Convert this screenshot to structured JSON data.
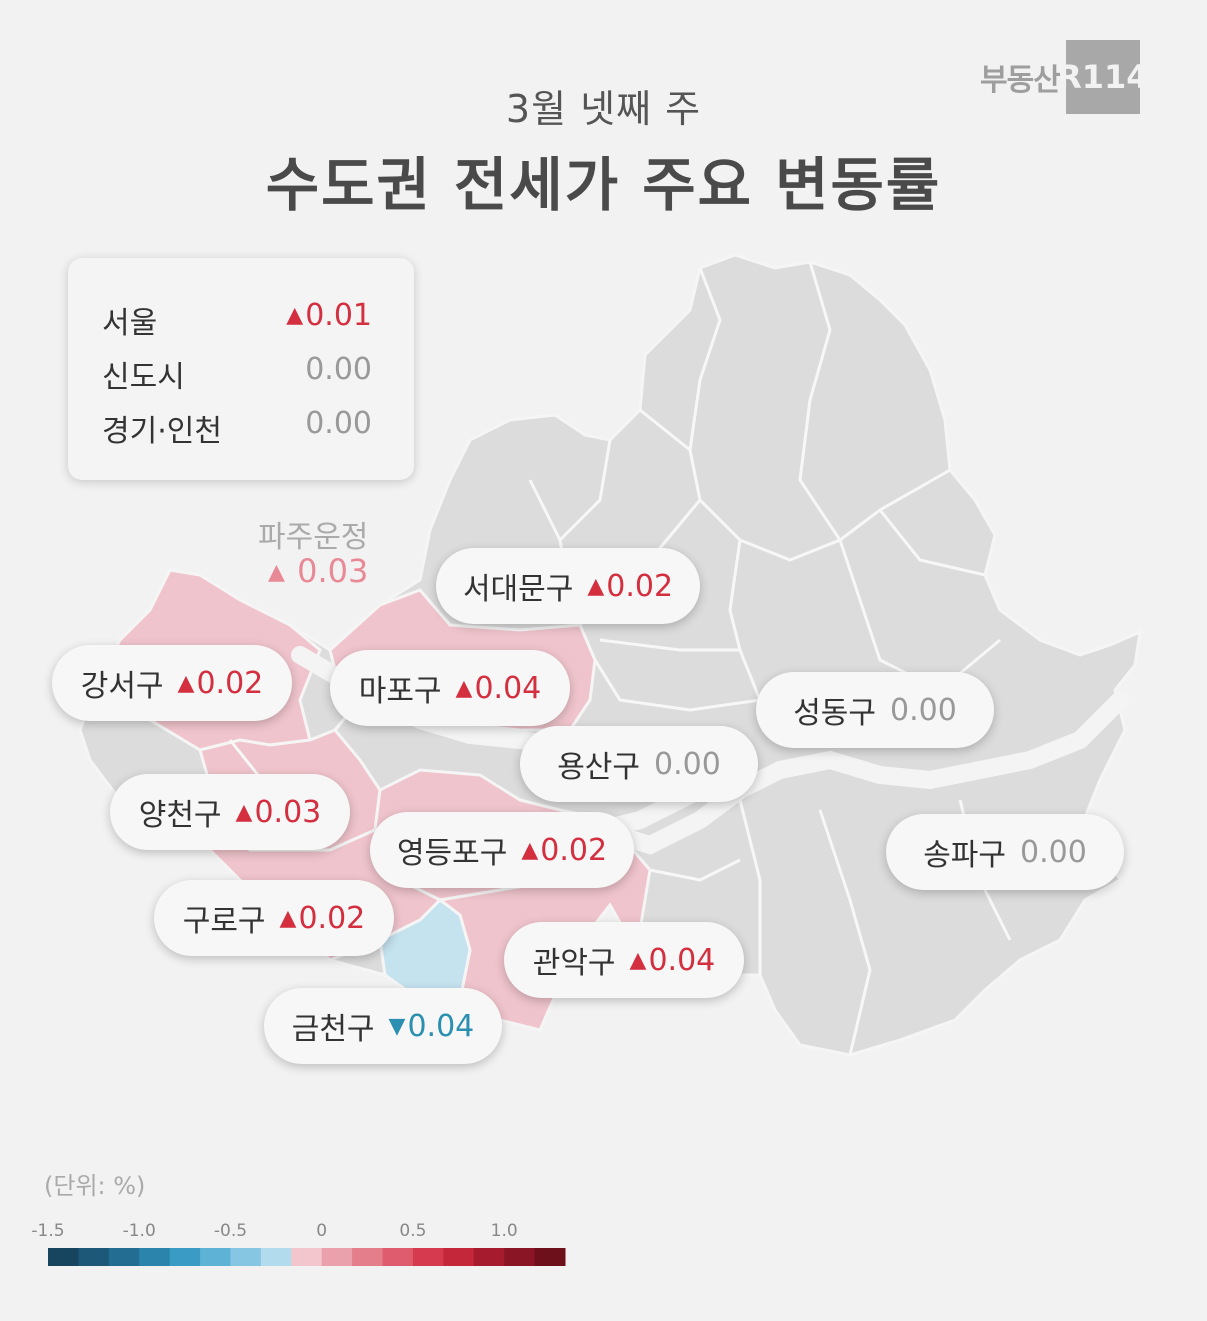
{
  "header": {
    "subtitle": "3월 넷째 주",
    "title": "수도권 전세가 주요 변동률"
  },
  "logo": {
    "text": "부동산",
    "box": "R114"
  },
  "summary": [
    {
      "label": "서울",
      "value": "0.01",
      "direction": "up"
    },
    {
      "label": "신도시",
      "value": "0.00",
      "direction": "flat"
    },
    {
      "label": "경기·인천",
      "value": "0.00",
      "direction": "flat"
    }
  ],
  "note": {
    "label": "파주운정",
    "value": "0.03",
    "direction": "up"
  },
  "districts": [
    {
      "name": "서대문구",
      "value": "0.02",
      "direction": "up"
    },
    {
      "name": "강서구",
      "value": "0.02",
      "direction": "up"
    },
    {
      "name": "마포구",
      "value": "0.04",
      "direction": "up"
    },
    {
      "name": "성동구",
      "value": "0.00",
      "direction": "flat"
    },
    {
      "name": "용산구",
      "value": "0.00",
      "direction": "flat"
    },
    {
      "name": "양천구",
      "value": "0.03",
      "direction": "up"
    },
    {
      "name": "영등포구",
      "value": "0.02",
      "direction": "up"
    },
    {
      "name": "송파구",
      "value": "0.00",
      "direction": "flat"
    },
    {
      "name": "구로구",
      "value": "0.02",
      "direction": "up"
    },
    {
      "name": "관악구",
      "value": "0.04",
      "direction": "up"
    },
    {
      "name": "금천구",
      "value": "0.04",
      "direction": "down"
    }
  ],
  "legend": {
    "unit": "(단위: %)",
    "ticks": [
      "-1.5",
      "-1.0",
      "-0.5",
      "0",
      "0.5",
      "1.0"
    ],
    "colors": [
      "#17445e",
      "#1d5878",
      "#236d92",
      "#2a84ab",
      "#3a9bc4",
      "#5db2d6",
      "#86c6e2",
      "#b2dbee",
      "#f2c6cc",
      "#eaa1ab",
      "#e47e8b",
      "#de5c6d",
      "#d63a4f",
      "#c4263a",
      "#a61c2e",
      "#8a1524",
      "#6e0f1c"
    ]
  },
  "colors": {
    "up": "#d32f3f",
    "down": "#2a8fb0",
    "rise_fill": "#f0c4cc",
    "fall_fill": "#c5e2ef",
    "neutral_fill": "#dcdcdc"
  },
  "arrows": {
    "up": "▲",
    "down": "▼"
  }
}
